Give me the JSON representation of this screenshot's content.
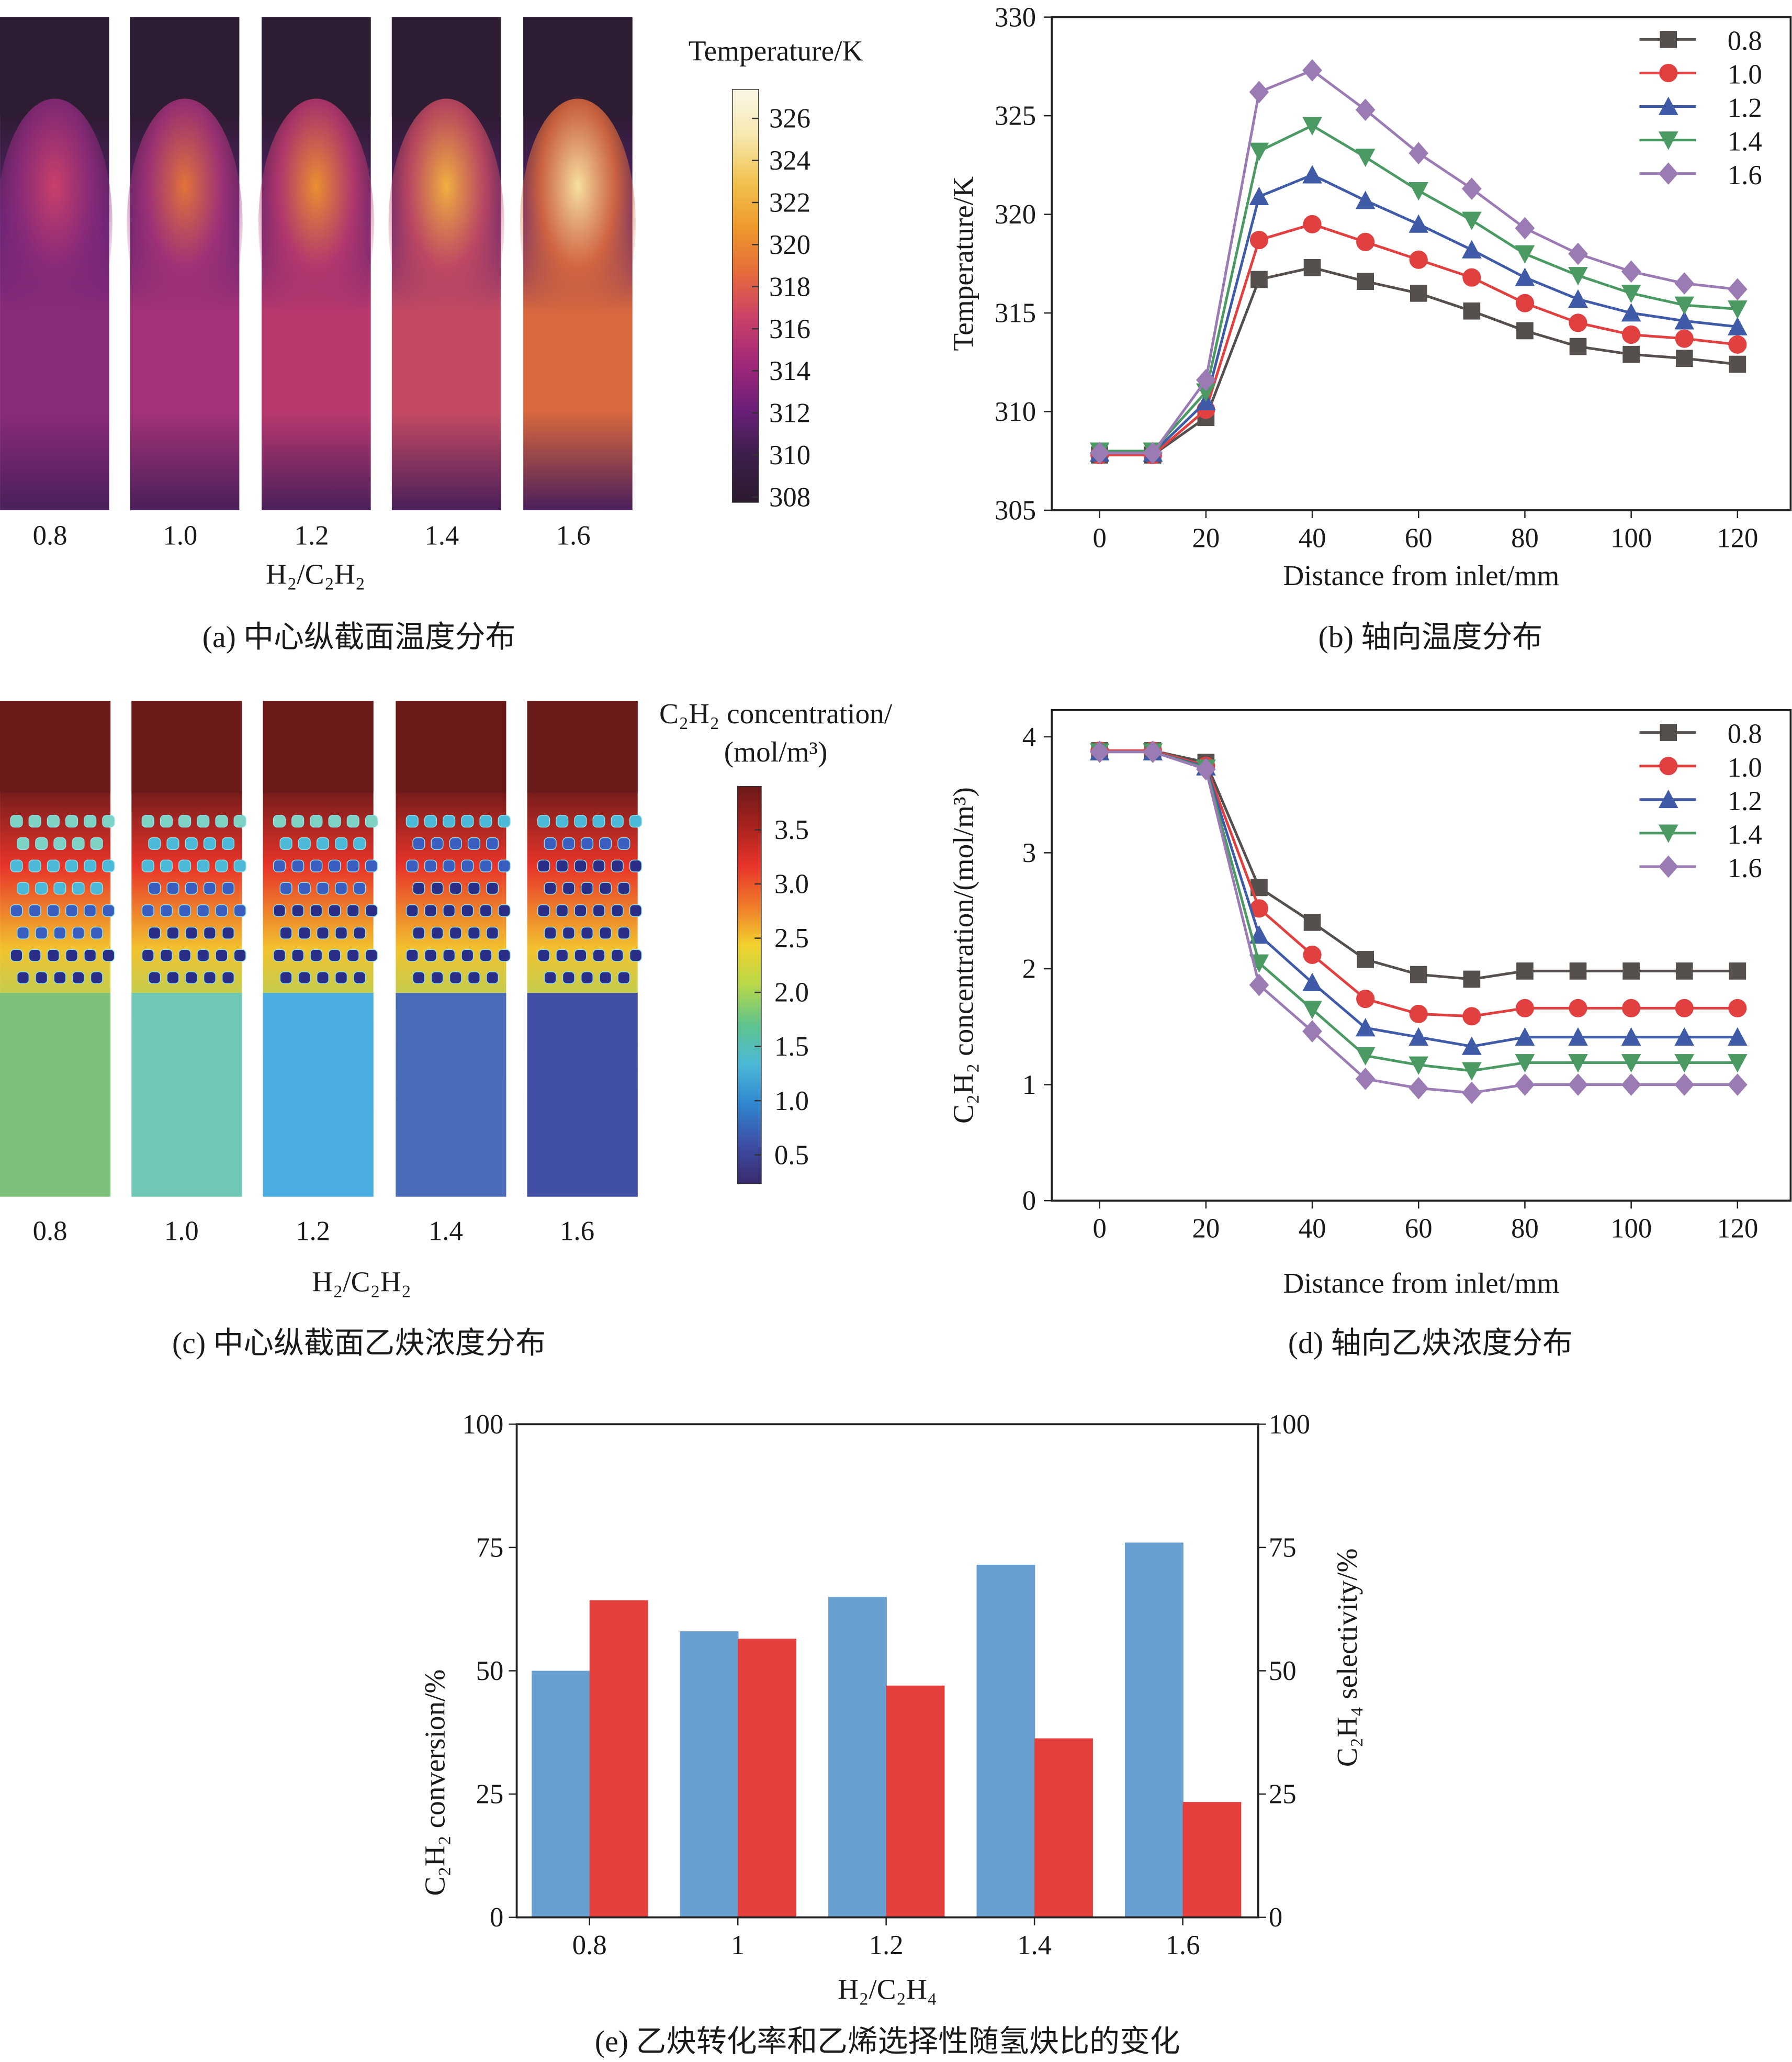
{
  "panel_a": {
    "caption": "(a) 中心纵截面温度分布",
    "colorbar_title": "Temperature/K",
    "colorbar_ticks": [
      "326",
      "324",
      "322",
      "320",
      "318",
      "316",
      "314",
      "312",
      "310",
      "308"
    ],
    "colormap": [
      "#2b1a2e",
      "#3a1f4a",
      "#6a1f78",
      "#a0287a",
      "#c9406a",
      "#e56b3c",
      "#ef9a2c",
      "#f2c351",
      "#f7e9b0",
      "#fbf7e6"
    ],
    "strip_labels": [
      "0.8",
      "1.0",
      "1.2",
      "1.4",
      "1.6"
    ],
    "xlabel": "H₂/C₂H₂"
  },
  "panel_c": {
    "caption": "(c) 中心纵截面乙炔浓度分布",
    "colorbar_title_line1": "C₂H₂ concentration/",
    "colorbar_title_line2": "(mol/m³)",
    "colorbar_ticks": [
      "3.5",
      "3.0",
      "2.5",
      "2.0",
      "1.5",
      "1.0",
      "0.5"
    ],
    "colormap": [
      "#6b1a1a",
      "#a8221e",
      "#e8342a",
      "#f07a2a",
      "#f2d22e",
      "#b8d84a",
      "#5fc48c",
      "#4cb9d8",
      "#2f86cf",
      "#3d4fa6",
      "#3a2a6e"
    ],
    "strip_labels": [
      "0.8",
      "1.0",
      "1.2",
      "1.4",
      "1.6"
    ],
    "xlabel": "H₂/C₂H₂"
  },
  "chart_data": [
    {
      "id": "b",
      "type": "line",
      "caption": "(b) 轴向温度分布",
      "xlabel": "Distance from inlet/mm",
      "ylabel": "Temperature/K",
      "xlim": [
        -9,
        130
      ],
      "ylim": [
        305,
        330
      ],
      "xticks": [
        0,
        20,
        40,
        60,
        80,
        100,
        120
      ],
      "yticks": [
        305,
        310,
        315,
        320,
        325,
        330
      ],
      "legend": "top-right",
      "x": [
        0,
        10,
        20,
        30,
        40,
        50,
        60,
        70,
        80,
        90,
        100,
        110,
        120
      ],
      "series": [
        {
          "name": "0.8",
          "color": "#55504e",
          "marker": "square",
          "values": [
            307.8,
            307.8,
            309.7,
            316.7,
            317.3,
            316.6,
            316.0,
            315.1,
            314.1,
            313.3,
            312.9,
            312.7,
            312.4
          ]
        },
        {
          "name": "1.0",
          "color": "#e0403f",
          "marker": "circle",
          "values": [
            307.8,
            307.8,
            310.1,
            318.7,
            319.5,
            318.6,
            317.7,
            316.8,
            315.5,
            314.5,
            313.9,
            313.7,
            313.4
          ]
        },
        {
          "name": "1.2",
          "color": "#3f5ba8",
          "marker": "triangle-up",
          "values": [
            307.9,
            307.9,
            310.5,
            320.9,
            322.0,
            320.7,
            319.5,
            318.2,
            316.8,
            315.7,
            315.0,
            314.6,
            314.3
          ]
        },
        {
          "name": "1.4",
          "color": "#4b9a63",
          "marker": "triangle-down",
          "values": [
            308.0,
            308.0,
            311.0,
            323.2,
            324.5,
            322.9,
            321.2,
            319.7,
            318.0,
            316.9,
            316.0,
            315.4,
            315.2
          ]
        },
        {
          "name": "1.6",
          "color": "#9b7bb4",
          "marker": "diamond",
          "values": [
            307.9,
            307.9,
            311.6,
            326.2,
            327.3,
            325.3,
            323.1,
            321.3,
            319.3,
            318.0,
            317.1,
            316.5,
            316.2
          ]
        }
      ]
    },
    {
      "id": "d",
      "type": "line",
      "caption": "(d) 轴向乙炔浓度分布",
      "xlabel": "Distance from inlet/mm",
      "ylabel": "C₂H₂ concentration/(mol/m³)",
      "xlim": [
        -9,
        130
      ],
      "ylim": [
        0,
        4.23
      ],
      "xticks": [
        0,
        20,
        40,
        60,
        80,
        100,
        120
      ],
      "yticks": [
        0,
        1,
        2,
        3,
        4
      ],
      "legend": "top-right",
      "x": [
        0,
        10,
        20,
        30,
        40,
        50,
        60,
        70,
        80,
        90,
        100,
        110,
        120
      ],
      "series": [
        {
          "name": "0.8",
          "color": "#55504e",
          "marker": "square",
          "values": [
            3.88,
            3.88,
            3.78,
            2.7,
            2.4,
            2.08,
            1.95,
            1.91,
            1.98,
            1.98,
            1.98,
            1.98,
            1.98
          ]
        },
        {
          "name": "1.0",
          "color": "#e0403f",
          "marker": "circle",
          "values": [
            3.88,
            3.88,
            3.75,
            2.52,
            2.12,
            1.74,
            1.61,
            1.59,
            1.66,
            1.66,
            1.66,
            1.66,
            1.66
          ]
        },
        {
          "name": "1.2",
          "color": "#3f5ba8",
          "marker": "triangle-up",
          "values": [
            3.87,
            3.87,
            3.74,
            2.29,
            1.88,
            1.49,
            1.41,
            1.33,
            1.41,
            1.41,
            1.41,
            1.41,
            1.41
          ]
        },
        {
          "name": "1.4",
          "color": "#4b9a63",
          "marker": "triangle-down",
          "values": [
            3.87,
            3.87,
            3.73,
            2.05,
            1.65,
            1.25,
            1.17,
            1.12,
            1.19,
            1.19,
            1.19,
            1.19,
            1.19
          ]
        },
        {
          "name": "1.6",
          "color": "#9b7bb4",
          "marker": "diamond",
          "values": [
            3.87,
            3.87,
            3.72,
            1.86,
            1.46,
            1.05,
            0.97,
            0.93,
            1.0,
            1.0,
            1.0,
            1.0,
            1.0
          ]
        }
      ]
    },
    {
      "id": "e",
      "type": "bar",
      "caption": "(e) 乙炔转化率和乙烯选择性随氢炔比的变化",
      "xlabel": "H₂/C₂H₄",
      "ylabel": "C₂H₂ conversion/%",
      "ylabel_right": "C₂H₄ selectivity/%",
      "ylim": [
        0,
        100
      ],
      "yticks": [
        0,
        25,
        50,
        75,
        100
      ],
      "categories": [
        "0.8",
        "1",
        "1.2",
        "1.4",
        "1.6"
      ],
      "series": [
        {
          "axis": "left",
          "color": "#679fd0",
          "values": [
            50,
            58,
            65,
            71.5,
            76
          ]
        },
        {
          "axis": "right",
          "color": "#e23f3d",
          "values": [
            64.3,
            56.5,
            47,
            36.3,
            23.4
          ]
        }
      ]
    }
  ]
}
